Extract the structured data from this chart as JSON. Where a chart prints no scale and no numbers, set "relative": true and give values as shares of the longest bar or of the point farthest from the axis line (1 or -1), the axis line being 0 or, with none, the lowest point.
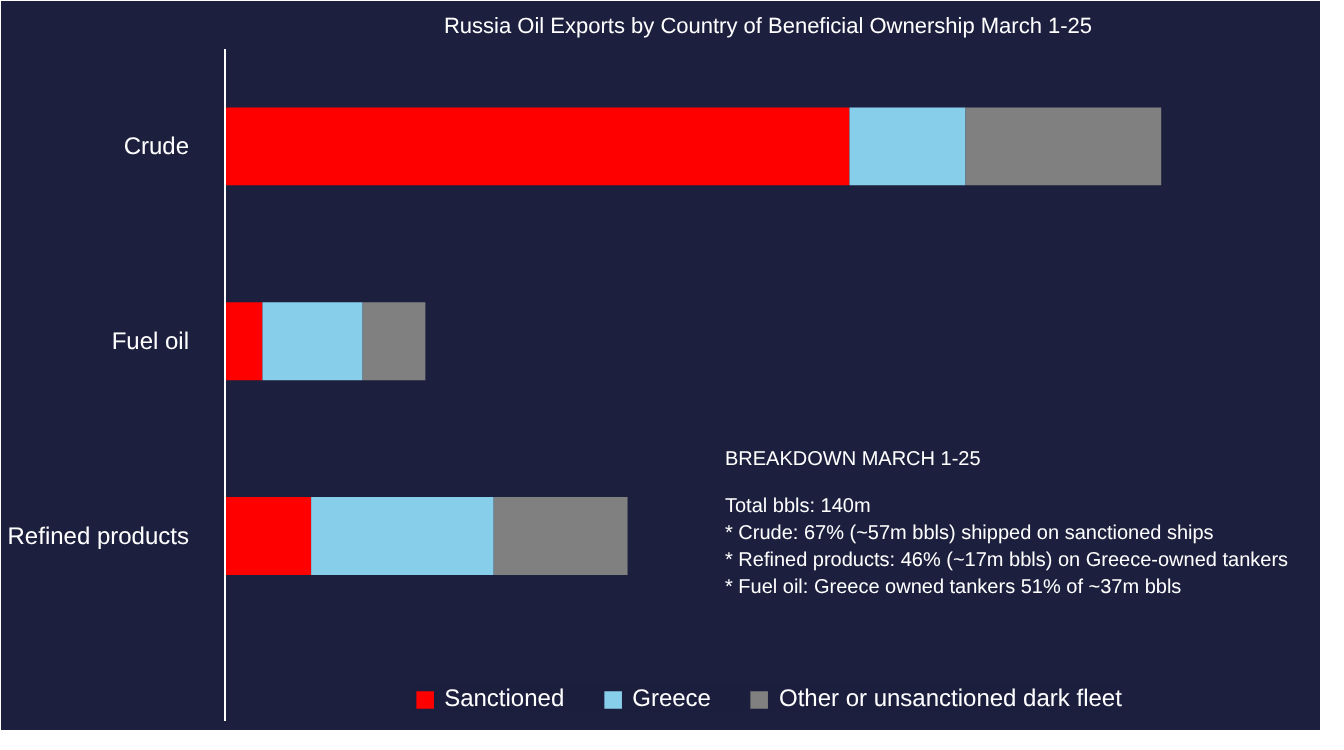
{
  "chart_data": {
    "type": "bar",
    "orientation": "horizontal",
    "stacked": true,
    "relative": true,
    "title": "Russia Oil Exports by Country of Beneficial Ownership March 1-25",
    "categories": [
      "Crude",
      "Fuel oil",
      "Refined products"
    ],
    "series": [
      {
        "name": "Sanctioned",
        "color": "#ff0000",
        "values": [
          0.667,
          0.04,
          0.092
        ]
      },
      {
        "name": "Greece",
        "color": "#87ceeb",
        "values": [
          0.124,
          0.107,
          0.195
        ]
      },
      {
        "name": "Other or unsanctioned dark fleet",
        "color": "#808080",
        "values": [
          0.209,
          0.067,
          0.143
        ]
      }
    ],
    "legend": "bottom",
    "grid": false,
    "annotations": [
      "BREAKDOWN MARCH 1-25",
      "Total bbls: 140m",
      "* Crude: 67% (~57m bbls) shipped on sanctioned ships",
      "* Refined products: 46% (~17m bbls) on Greece-owned tankers",
      "* Fuel oil: Greece owned tankers 51% of ~37m bbls"
    ]
  }
}
